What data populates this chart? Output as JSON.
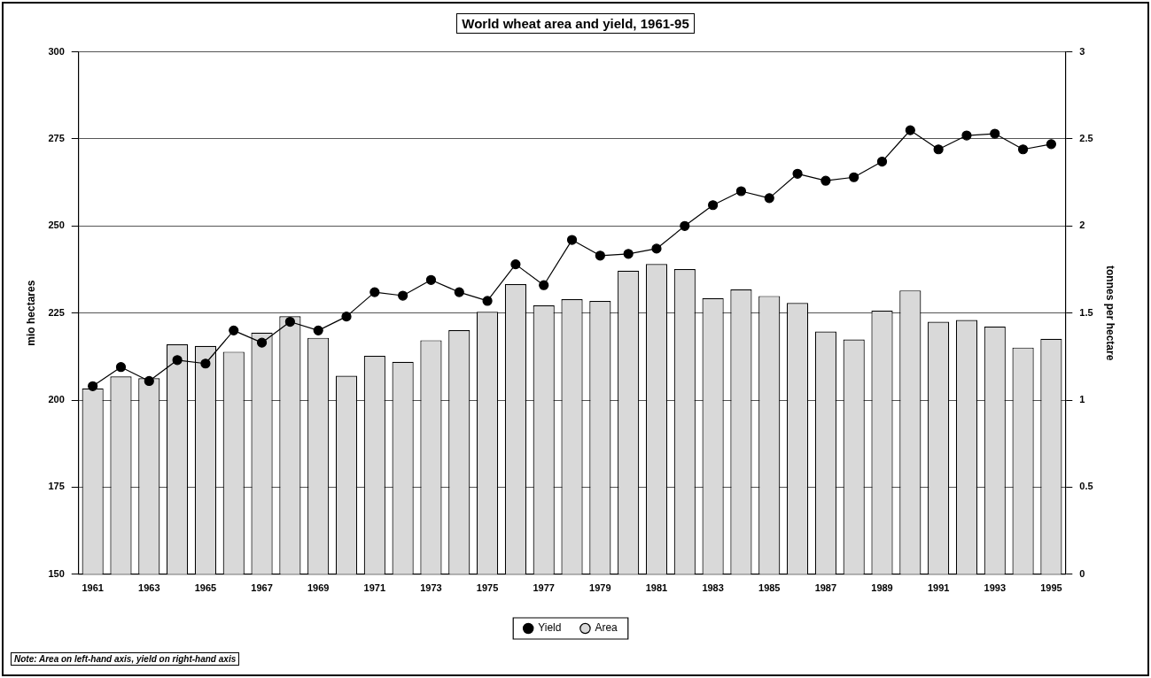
{
  "chart_data": {
    "type": "bar",
    "title": "World wheat area and yield, 1961-95",
    "ylabel": "mio hectares",
    "y2label": "tonnes per hectare",
    "categories": [
      "1961",
      null,
      "1963",
      null,
      "1965",
      null,
      "1967",
      null,
      "1969",
      null,
      "1971",
      null,
      "1973",
      null,
      "1975",
      null,
      "1977",
      null,
      "1979",
      null,
      "1981",
      null,
      "1983",
      null,
      "1985",
      null,
      "1987",
      null,
      "1989",
      null,
      "1991",
      null,
      "1993",
      null,
      "1995"
    ],
    "series": [
      {
        "name": "Area",
        "color": "#d9d9d9",
        "values": [
          203.4,
          206.8,
          206.3,
          216.0,
          215.6,
          213.9,
          219.4,
          224.1,
          217.9,
          207.0,
          212.7,
          211.0,
          217.2,
          220.1,
          225.4,
          233.3,
          227.2,
          229.0,
          228.5,
          237.2,
          239.1,
          237.6,
          229.3,
          231.8,
          229.9,
          227.9,
          219.7,
          217.4,
          225.7,
          231.5,
          222.5,
          223.0,
          221.1,
          215.1,
          217.6
        ]
      },
      {
        "name": "Yield",
        "type": "line",
        "axis": "y2",
        "color": "#000000",
        "values": [
          1.08,
          1.19,
          1.11,
          1.23,
          1.21,
          1.4,
          1.33,
          1.45,
          1.4,
          1.48,
          1.62,
          1.6,
          1.69,
          1.62,
          1.57,
          1.78,
          1.66,
          1.92,
          1.83,
          1.84,
          1.87,
          2.0,
          2.12,
          2.2,
          2.16,
          2.3,
          2.26,
          2.28,
          2.37,
          2.55,
          2.44,
          2.52,
          2.53,
          2.44,
          2.47
        ]
      }
    ],
    "ylim": [
      150,
      300
    ],
    "yticks": [
      150,
      175,
      200,
      225,
      250,
      275,
      300
    ],
    "y2lim": [
      0,
      3
    ],
    "y2ticks": [
      0,
      0.5,
      1,
      1.5,
      2,
      2.5,
      3
    ],
    "grid": "y",
    "legend": "bottom",
    "marker": "circle",
    "line_style": "solid",
    "annotations": [
      "Note: Area on left-hand axis, yield on right-hand axis"
    ]
  }
}
